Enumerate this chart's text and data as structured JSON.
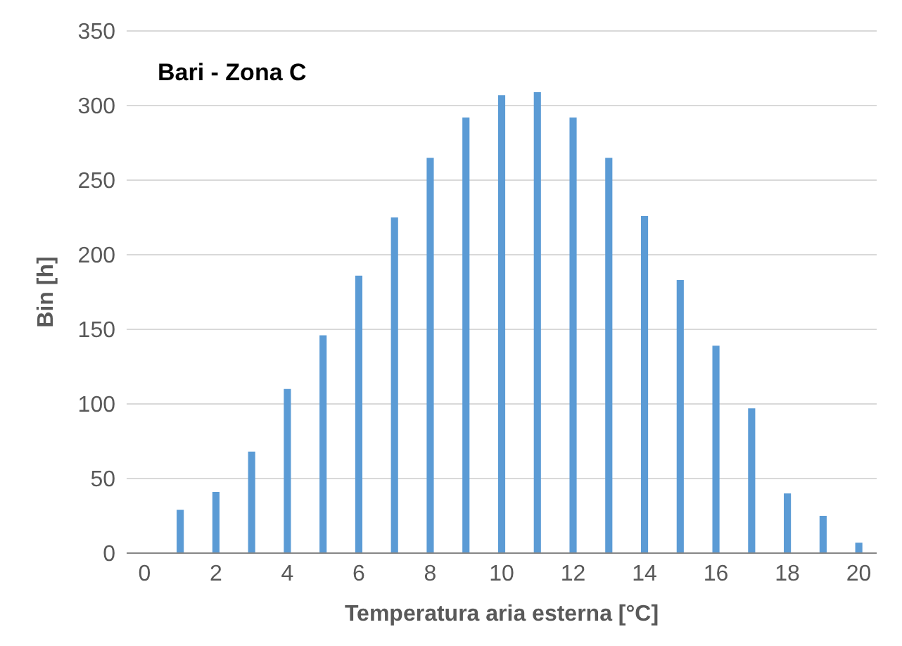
{
  "chart_data": {
    "type": "bar",
    "title": "Bari - Zona C",
    "xlabel": "Temperatura aria esterna [°C]",
    "ylabel": "Bin [h]",
    "categories": [
      "0",
      null,
      "2",
      null,
      "4",
      null,
      "6",
      null,
      "8",
      null,
      "10",
      null,
      "12",
      null,
      "14",
      null,
      "16",
      null,
      "18",
      null,
      "20"
    ],
    "values": [
      null,
      29,
      41,
      68,
      110,
      146,
      186,
      225,
      265,
      292,
      307,
      309,
      292,
      265,
      226,
      183,
      139,
      97,
      40,
      25,
      7
    ],
    "color": "#5b9bd5",
    "ylim": [
      0,
      350
    ],
    "yticks": [
      0,
      50,
      100,
      150,
      200,
      250,
      300,
      350
    ],
    "grid": "y"
  }
}
